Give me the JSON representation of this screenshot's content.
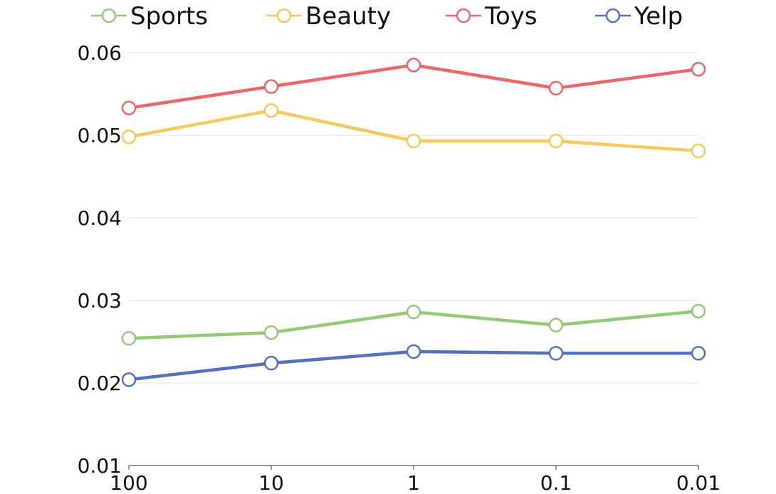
{
  "chart_data": {
    "type": "line",
    "x": [
      "100",
      "10",
      "1",
      "0.1",
      "0.01"
    ],
    "ylim": [
      0.01,
      0.06
    ],
    "yticks": [
      "0.01",
      "0.02",
      "0.03",
      "0.04",
      "0.05",
      "0.06"
    ],
    "grid": true,
    "legend_position": "top",
    "series": [
      {
        "name": "Sports",
        "color": "#91cc75",
        "values": [
          0.0254,
          0.0261,
          0.0286,
          0.027,
          0.0287
        ]
      },
      {
        "name": "Beauty",
        "color": "#fac858",
        "values": [
          0.0498,
          0.053,
          0.0493,
          0.0493,
          0.0481
        ]
      },
      {
        "name": "Toys",
        "color": "#ee6666",
        "values": [
          0.0533,
          0.0559,
          0.0585,
          0.0557,
          0.058
        ]
      },
      {
        "name": "Yelp",
        "color": "#5470c6",
        "values": [
          0.0204,
          0.0224,
          0.0238,
          0.0236,
          0.0236
        ]
      }
    ]
  }
}
